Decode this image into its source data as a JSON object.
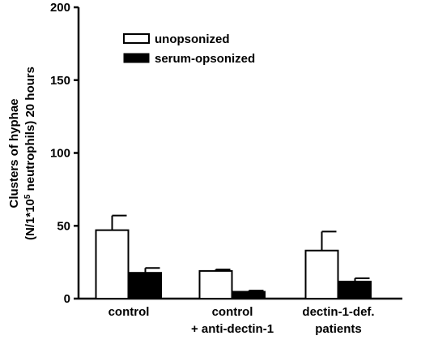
{
  "chart_data": {
    "type": "bar",
    "title": "",
    "xlabel": "",
    "ylabel": {
      "line1": "Clusters of hyphae",
      "line2_prefix": "(N/1*10",
      "line2_sup": "5",
      "line2_suffix": " neutrophils) 20 hours"
    },
    "ylim": [
      0,
      200
    ],
    "yticks": [
      "0",
      "50",
      "100",
      "150",
      "200"
    ],
    "categories": [
      [
        "control"
      ],
      [
        "control",
        "+ anti-dectin-1"
      ],
      [
        "dectin-1-def.",
        "patients"
      ]
    ],
    "series": [
      {
        "name": "unopsonized",
        "values": [
          47,
          19,
          33
        ],
        "errors": [
          10,
          1,
          13
        ],
        "color": "#ffffff"
      },
      {
        "name": "serum-opsonized",
        "values": [
          18,
          5,
          12
        ],
        "errors": [
          3,
          0.5,
          2
        ],
        "color": "#000000"
      }
    ],
    "legend_position": "top-center",
    "grid": false
  }
}
